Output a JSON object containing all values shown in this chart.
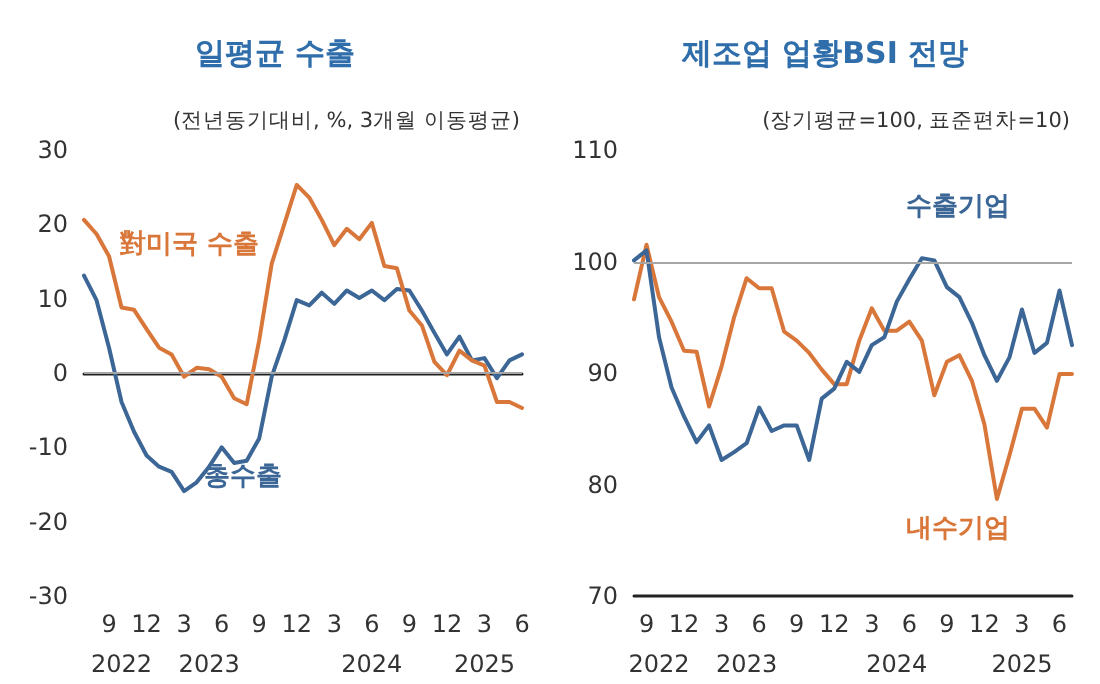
{
  "chart_data": [
    {
      "type": "line",
      "title": "일평균 수출",
      "subtitle": "(전년동기대비, %, 3개월 이동평균)",
      "x": [
        "2022-07",
        "2022-08",
        "2022-09",
        "2022-10",
        "2022-11",
        "2022-12",
        "2023-01",
        "2023-02",
        "2023-03",
        "2023-04",
        "2023-05",
        "2023-06",
        "2023-07",
        "2023-08",
        "2023-09",
        "2023-10",
        "2023-11",
        "2023-12",
        "2024-01",
        "2024-02",
        "2024-03",
        "2024-04",
        "2024-05",
        "2024-06",
        "2024-07",
        "2024-08",
        "2024-09",
        "2024-10",
        "2024-11",
        "2024-12",
        "2025-01",
        "2025-02",
        "2025-03",
        "2025-04",
        "2025-05",
        "2025-06"
      ],
      "series": [
        {
          "name": "對미국 수출",
          "color": "#d9773b",
          "values": [
            20.6,
            18.7,
            15.7,
            8.8,
            8.5,
            5.9,
            3.4,
            2.5,
            -0.5,
            0.7,
            0.5,
            -0.5,
            -3.4,
            -4.2,
            4.4,
            14.7,
            20,
            25.3,
            23.6,
            20.6,
            17.2,
            19.4,
            18,
            20.2,
            14.4,
            14.1,
            8.4,
            6.4,
            1.5,
            -0.3,
            3,
            1.7,
            1,
            -3.9,
            -3.9,
            -4.7
          ]
        },
        {
          "name": "총수출",
          "color": "#3b6696",
          "values": [
            13.1,
            9.8,
            3.4,
            -3.9,
            -7.9,
            -11.1,
            -12.6,
            -13.3,
            -15.9,
            -14.7,
            -12.6,
            -10,
            -12.1,
            -11.8,
            -8.8,
            -0.5,
            4.4,
            9.8,
            9.1,
            10.8,
            9.3,
            11.1,
            10.1,
            11.1,
            9.8,
            11.3,
            11.1,
            8.4,
            5.4,
            2.5,
            4.9,
            1.7,
            2,
            -0.7,
            1.7,
            2.5
          ]
        }
      ],
      "ylim": [
        -30,
        30
      ],
      "yticks": [
        -30,
        -20,
        -10,
        0,
        10,
        20,
        30
      ],
      "xticks": [
        {
          "value": "2022-09",
          "label": "9"
        },
        {
          "value": "2022-12",
          "label": "12"
        },
        {
          "value": "2023-03",
          "label": "3"
        },
        {
          "value": "2023-06",
          "label": "6"
        },
        {
          "value": "2023-09",
          "label": "9"
        },
        {
          "value": "2023-12",
          "label": "12"
        },
        {
          "value": "2024-03",
          "label": "3"
        },
        {
          "value": "2024-06",
          "label": "6"
        },
        {
          "value": "2024-09",
          "label": "9"
        },
        {
          "value": "2024-12",
          "label": "12"
        },
        {
          "value": "2025-03",
          "label": "3"
        },
        {
          "value": "2025-06",
          "label": "6"
        }
      ],
      "annotations": [
        "2022",
        "2023",
        "2024",
        "2025"
      ],
      "xlim": [
        "2022-07",
        "2025-06"
      ],
      "ref_lines": [
        {
          "axis": "y",
          "value": 0,
          "color": "#a6a6a6"
        }
      ],
      "grid": false,
      "legend": false,
      "marker": "none",
      "line_style": "solid"
    },
    {
      "type": "line",
      "title": "제조업 업황BSI 전망",
      "subtitle": "(장기평균=100, 표준편차=10)",
      "x": [
        "2022-08",
        "2022-09",
        "2022-10",
        "2022-11",
        "2022-12",
        "2023-01",
        "2023-02",
        "2023-03",
        "2023-04",
        "2023-05",
        "2023-06",
        "2023-07",
        "2023-08",
        "2023-09",
        "2023-10",
        "2023-11",
        "2023-12",
        "2024-01",
        "2024-02",
        "2024-03",
        "2024-04",
        "2024-05",
        "2024-06",
        "2024-07",
        "2024-08",
        "2024-09",
        "2024-10",
        "2024-11",
        "2024-12",
        "2025-01",
        "2025-02",
        "2025-03",
        "2025-04",
        "2025-05",
        "2025-06",
        "2025-07"
      ],
      "series": [
        {
          "name": "수출기업",
          "color": "#3b6696",
          "values": [
            100.1,
            101,
            93.2,
            88.7,
            86.1,
            83.8,
            85.3,
            82.2,
            82.9,
            83.7,
            86.9,
            84.8,
            85.3,
            85.3,
            82.2,
            87.7,
            88.6,
            91,
            90.1,
            92.5,
            93.2,
            96.4,
            98.4,
            100.3,
            100.1,
            97.7,
            96.8,
            94.5,
            91.6,
            89.3,
            91.4,
            95.7,
            91.8,
            92.7,
            97.4,
            92.5
          ]
        },
        {
          "name": "내수기업",
          "color": "#d9773b",
          "values": [
            96.6,
            101.5,
            96.8,
            94.6,
            92,
            91.9,
            87,
            90.6,
            95,
            98.5,
            97.6,
            97.6,
            93.7,
            92.9,
            91.8,
            90.3,
            89,
            89,
            92.9,
            95.8,
            93.8,
            93.8,
            94.6,
            92.9,
            88,
            91,
            91.6,
            89.3,
            85.4,
            78.7,
            82.6,
            86.8,
            86.8,
            85.1,
            89.9,
            89.9
          ]
        }
      ],
      "ylim": [
        70,
        110
      ],
      "yticks": [
        70,
        80,
        90,
        100,
        110
      ],
      "xticks": [
        {
          "value": "2022-09",
          "label": "9"
        },
        {
          "value": "2022-12",
          "label": "12"
        },
        {
          "value": "2023-03",
          "label": "3"
        },
        {
          "value": "2023-06",
          "label": "6"
        },
        {
          "value": "2023-09",
          "label": "9"
        },
        {
          "value": "2023-12",
          "label": "12"
        },
        {
          "value": "2024-03",
          "label": "3"
        },
        {
          "value": "2024-06",
          "label": "6"
        },
        {
          "value": "2024-09",
          "label": "9"
        },
        {
          "value": "2024-12",
          "label": "12"
        },
        {
          "value": "2025-03",
          "label": "3"
        },
        {
          "value": "2025-06",
          "label": "6"
        }
      ],
      "annotations": [
        "2022",
        "2023",
        "2024",
        "2025"
      ],
      "xlim": [
        "2022-08",
        "2025-07"
      ],
      "ref_lines": [
        {
          "axis": "y",
          "value": 100,
          "color": "#a6a6a6"
        }
      ],
      "grid": false,
      "legend": false,
      "marker": "none",
      "line_style": "solid"
    }
  ]
}
